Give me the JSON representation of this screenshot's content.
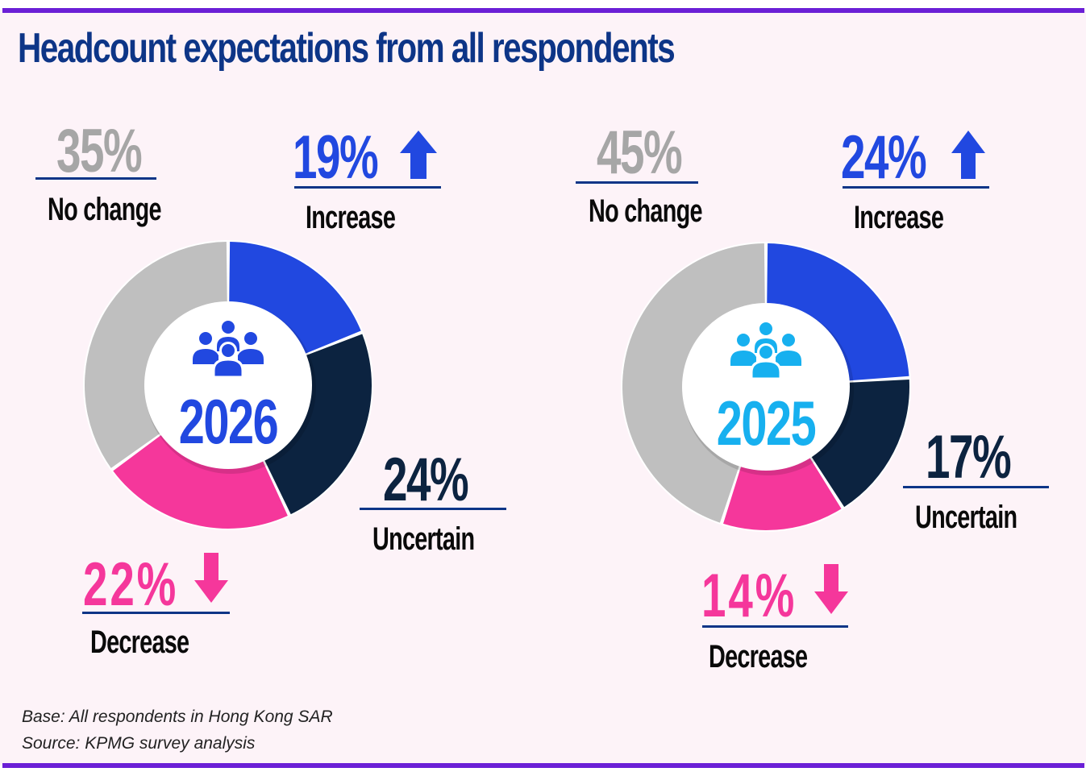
{
  "title": "Headcount expectations from all respondents",
  "colors": {
    "increase": "#2148e0",
    "uncertain": "#0c2340",
    "decrease": "#f5379b",
    "no_change": "#bfbfbf",
    "no_change_label": "#a6a6a6",
    "title": "#0d3587",
    "accent_bar": "#6b1fd6",
    "year_2026": "#2148e0",
    "year_2025": "#17b0ef"
  },
  "chart_data": [
    {
      "type": "pie",
      "variant": "donut",
      "title": "2026",
      "center_icon": "people-group-icon",
      "categories": [
        "Increase",
        "Uncertain",
        "Decrease",
        "No change"
      ],
      "values": [
        19,
        24,
        22,
        35
      ],
      "labels": [
        "19%",
        "24%",
        "22%",
        "35%"
      ],
      "units": "%"
    },
    {
      "type": "pie",
      "variant": "donut",
      "title": "2025",
      "center_icon": "people-group-icon",
      "categories": [
        "Increase",
        "Uncertain",
        "Decrease",
        "No change"
      ],
      "values": [
        24,
        17,
        14,
        45
      ],
      "labels": [
        "24%",
        "17%",
        "14%",
        "45%"
      ],
      "units": "%"
    }
  ],
  "footnotes": {
    "base": "Base: All respondents in Hong Kong SAR",
    "source": "Source: KPMG survey analysis"
  }
}
